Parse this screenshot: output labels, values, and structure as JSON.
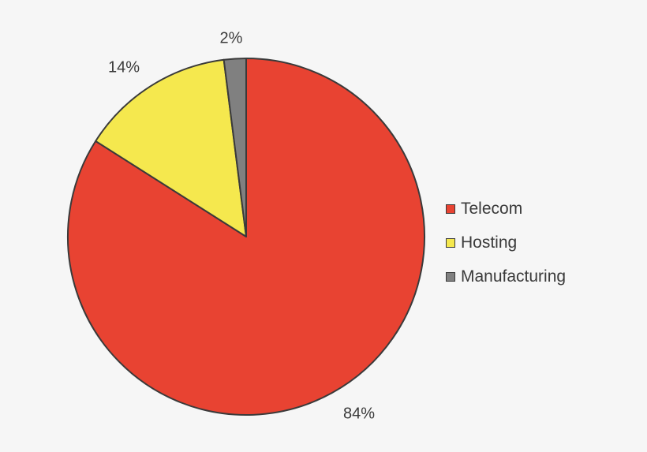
{
  "chart_data": {
    "type": "pie",
    "categories": [
      "Telecom",
      "Hosting",
      "Manufacturing"
    ],
    "values": [
      84,
      14,
      2
    ],
    "data_labels": [
      "84%",
      "14%",
      "2%"
    ],
    "colors": [
      "#e84332",
      "#f5e84e",
      "#808080"
    ],
    "start_angle_deg": 0,
    "direction": "clockwise",
    "legend_position": "right"
  }
}
